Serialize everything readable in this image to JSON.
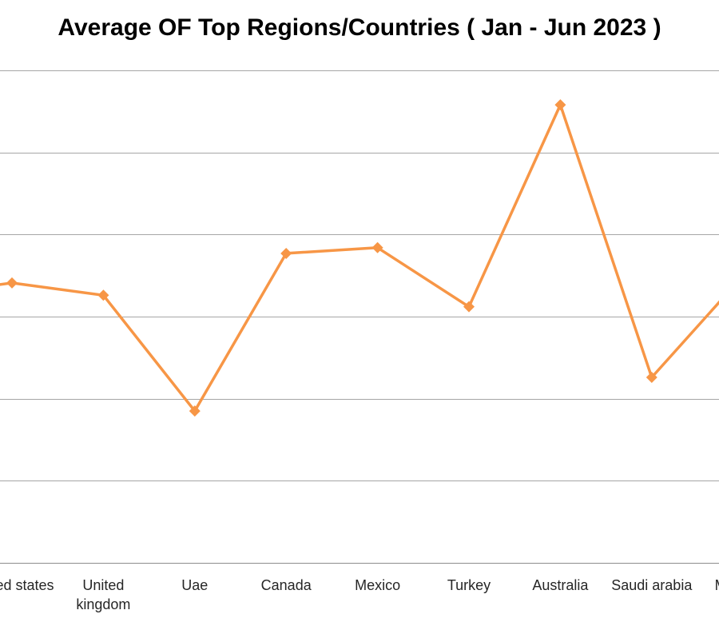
{
  "chart_data": {
    "type": "line",
    "title": "Average OF Top Regions/Countries ( Jan - Jun 2023 )",
    "categories": [
      "United states",
      "United kingdom",
      "Uae",
      "Canada",
      "Mexico",
      "Turkey",
      "Australia",
      "Saudi arabia",
      "Malaysia"
    ],
    "series": [
      {
        "values": [
          3.41,
          3.26,
          1.85,
          3.77,
          3.84,
          3.12,
          5.58,
          2.26,
          3.5
        ]
      }
    ],
    "ylim": [
      0,
      6
    ],
    "grid": true,
    "colors": {
      "line": "#F79646",
      "grid": "#A6A6A6",
      "axis_text": "#262626"
    }
  }
}
